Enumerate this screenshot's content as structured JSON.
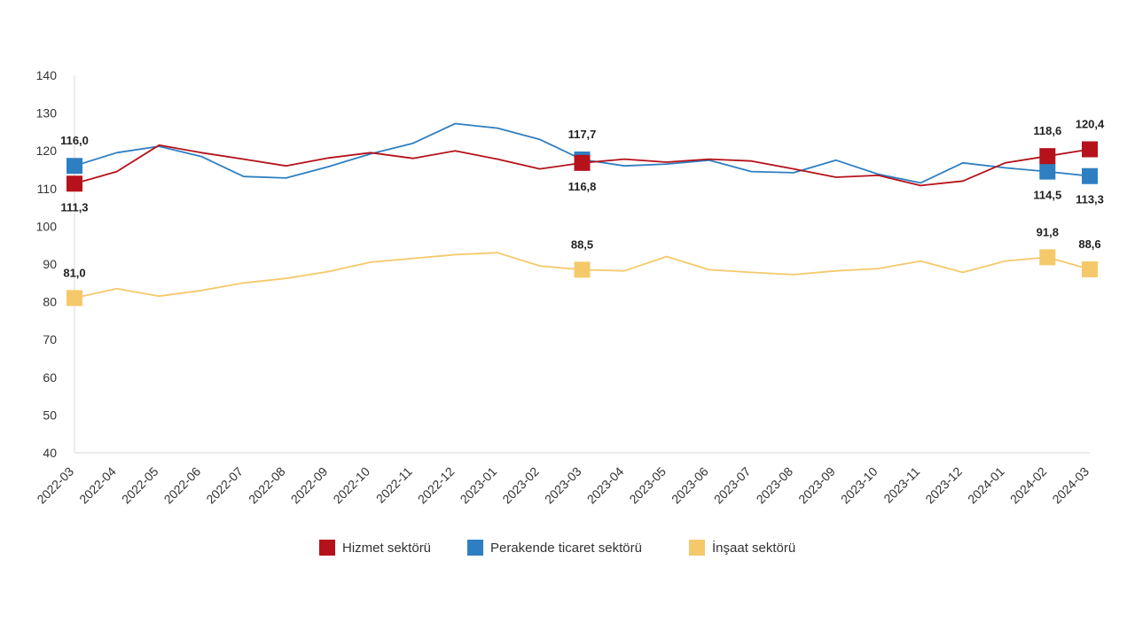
{
  "chart_data": {
    "type": "line",
    "ylim": [
      40,
      140
    ],
    "yticks": [
      40,
      50,
      60,
      70,
      80,
      90,
      100,
      110,
      120,
      130,
      140
    ],
    "grid": false,
    "legend_position": "bottom",
    "categories": [
      "2022-03",
      "2022-04",
      "2022-05",
      "2022-06",
      "2022-07",
      "2022-08",
      "2022-09",
      "2022-10",
      "2022-11",
      "2022-12",
      "2023-01",
      "2023-02",
      "2023-03",
      "2023-04",
      "2023-05",
      "2023-06",
      "2023-07",
      "2023-08",
      "2023-09",
      "2023-10",
      "2023-11",
      "2023-12",
      "2024-01",
      "2024-02",
      "2024-03"
    ],
    "series": [
      {
        "name": "Hizmet sektörü",
        "color": "#b5121b",
        "values": [
          111.3,
          114.5,
          121.5,
          119.5,
          117.8,
          116.0,
          118.1,
          119.5,
          118.0,
          120.0,
          117.8,
          115.2,
          116.8,
          117.8,
          117.0,
          117.8,
          117.3,
          115.2,
          113.0,
          113.5,
          110.8,
          112.0,
          116.8,
          118.6,
          120.4
        ],
        "labels": [
          {
            "index": 0,
            "text": "111,3",
            "pos": "below"
          },
          {
            "index": 12,
            "text": "116,8",
            "pos": "below"
          },
          {
            "index": 23,
            "text": "118,6",
            "pos": "above"
          },
          {
            "index": 24,
            "text": "120,4",
            "pos": "above"
          }
        ]
      },
      {
        "name": "Perakende ticaret sektörü",
        "color": "#2e7fc1",
        "values": [
          116.0,
          119.5,
          121.2,
          118.5,
          113.2,
          112.8,
          115.8,
          119.2,
          122.0,
          127.2,
          126.0,
          123.0,
          117.7,
          116.0,
          116.5,
          117.5,
          114.5,
          114.2,
          117.5,
          113.8,
          111.5,
          116.8,
          115.5,
          114.5,
          113.3
        ],
        "labels": [
          {
            "index": 0,
            "text": "116,0",
            "pos": "above"
          },
          {
            "index": 12,
            "text": "117,7",
            "pos": "above"
          },
          {
            "index": 23,
            "text": "114,5",
            "pos": "below"
          },
          {
            "index": 24,
            "text": "113,3",
            "pos": "below"
          }
        ]
      },
      {
        "name": "İnşaat sektörü",
        "color": "#f5c96a",
        "values": [
          81.0,
          83.5,
          81.5,
          83.0,
          85.0,
          86.2,
          88.0,
          90.5,
          91.5,
          92.5,
          93.0,
          89.5,
          88.5,
          88.2,
          92.0,
          88.5,
          87.8,
          87.2,
          88.2,
          88.8,
          90.8,
          87.8,
          90.8,
          91.8,
          88.6
        ],
        "labels": [
          {
            "index": 0,
            "text": "81,0",
            "pos": "above"
          },
          {
            "index": 12,
            "text": "88,5",
            "pos": "above"
          },
          {
            "index": 23,
            "text": "91,8",
            "pos": "above"
          },
          {
            "index": 24,
            "text": "88,6",
            "pos": "above"
          }
        ]
      }
    ],
    "marker_indices": [
      0,
      12,
      23,
      24
    ]
  }
}
